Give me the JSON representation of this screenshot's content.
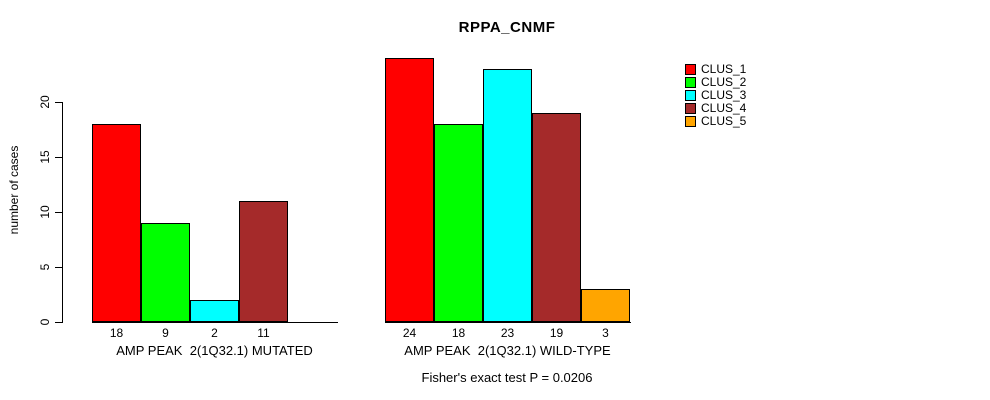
{
  "chart_data": {
    "type": "bar",
    "title": "RPPA_CNMF",
    "ylabel": "number of cases",
    "xlabel": "",
    "ylim": [
      0,
      24.5
    ],
    "yticks": [
      0,
      5,
      10,
      15,
      20
    ],
    "grid": false,
    "legend_position": "right",
    "series_labels": [
      "CLUS_1",
      "CLUS_2",
      "CLUS_3",
      "CLUS_4",
      "CLUS_5"
    ],
    "series_colors": [
      "#ff0000",
      "#00ff00",
      "#00ffff",
      "#a52a2a",
      "#ffa500"
    ],
    "groups": [
      {
        "label": "AMP PEAK  2(1Q32.1) MUTATED",
        "values": [
          18,
          9,
          2,
          11,
          0
        ]
      },
      {
        "label": "AMP PEAK  2(1Q32.1) WILD-TYPE",
        "values": [
          24,
          18,
          23,
          19,
          3
        ]
      }
    ],
    "bar_value_labels": [
      [
        "18",
        "9",
        "2",
        "11",
        ""
      ],
      [
        "24",
        "18",
        "23",
        "19",
        "3"
      ]
    ],
    "annotation": "Fisher's exact test P = 0.0206"
  }
}
